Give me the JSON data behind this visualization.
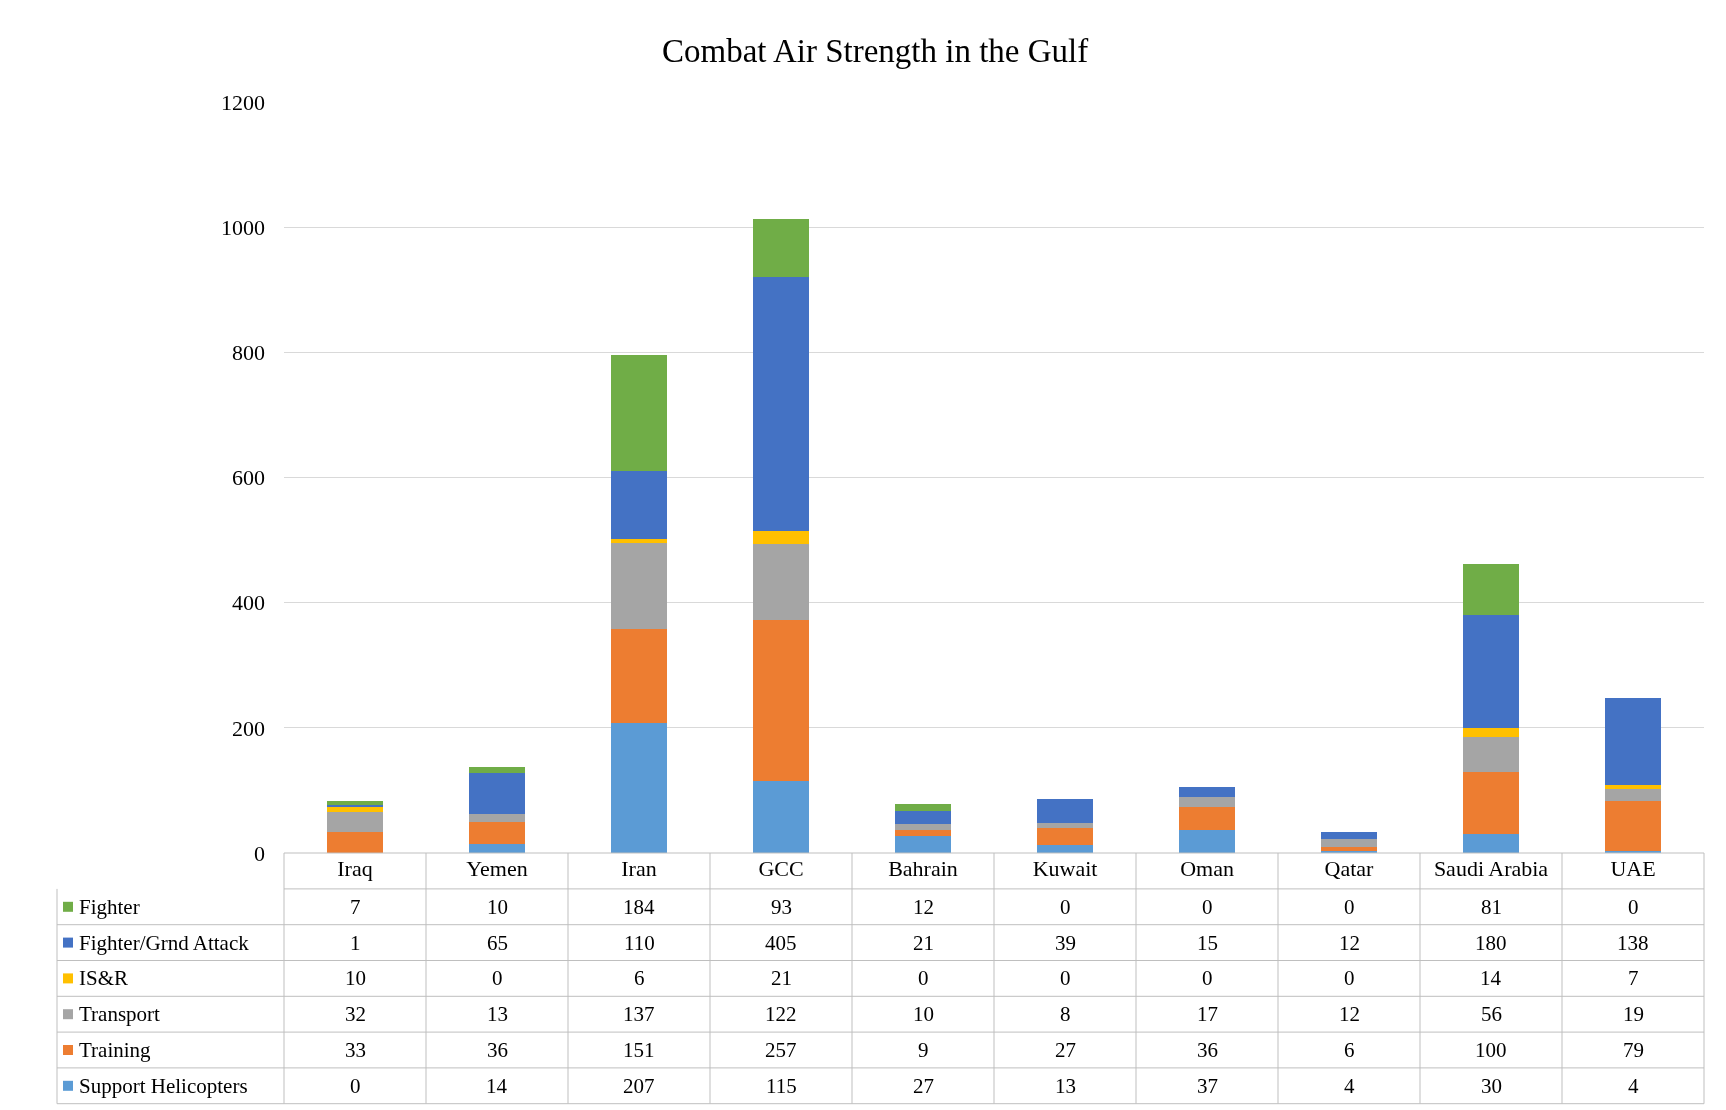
{
  "chart_data": {
    "type": "bar",
    "title": "Combat Air Strength in the Gulf",
    "stacked": true,
    "data_labels": true,
    "grid": "y",
    "legend": "bottom",
    "categories": [
      "Iraq",
      "Yemen",
      "Iran",
      "GCC",
      "Bahrain",
      "Kuwait",
      "Oman",
      "Qatar",
      "Saudi Arabia",
      "UAE"
    ],
    "ylim": [
      0,
      1200
    ],
    "yticks": [
      0,
      200,
      400,
      600,
      800,
      1000,
      1200
    ],
    "series": [
      {
        "name": "Support Helicopters",
        "color": "#5b9bd5",
        "values": [
          0,
          14,
          207,
          115,
          27,
          13,
          37,
          4,
          30,
          4
        ]
      },
      {
        "name": "Training",
        "color": "#ed7d31",
        "values": [
          33,
          36,
          151,
          257,
          9,
          27,
          36,
          6,
          100,
          79
        ]
      },
      {
        "name": "Transport",
        "color": "#a5a5a5",
        "values": [
          32,
          13,
          137,
          122,
          10,
          8,
          17,
          12,
          56,
          19
        ]
      },
      {
        "name": "IS&R",
        "color": "#ffc000",
        "values": [
          10,
          0,
          6,
          21,
          0,
          0,
          0,
          0,
          14,
          7
        ]
      },
      {
        "name": "Fighter/Grnd Attack",
        "color": "#4472c4",
        "values": [
          1,
          65,
          110,
          405,
          21,
          39,
          15,
          12,
          180,
          138
        ]
      },
      {
        "name": "Fighter",
        "color": "#70ad47",
        "values": [
          7,
          10,
          184,
          93,
          12,
          0,
          0,
          0,
          81,
          0
        ]
      }
    ]
  }
}
